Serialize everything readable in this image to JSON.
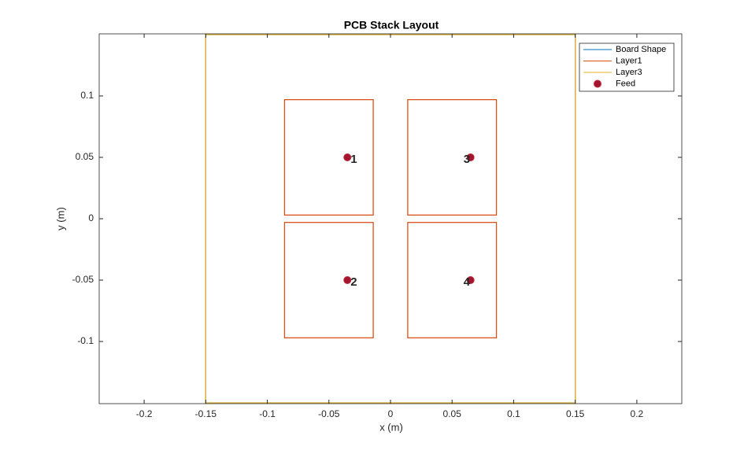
{
  "chart_data": {
    "type": "layout",
    "title": "PCB Stack Layout",
    "xlabel": "x (m)",
    "ylabel": "y (m)",
    "xlim": [
      -0.2365,
      0.2365
    ],
    "ylim": [
      -0.1506,
      0.1506
    ],
    "xticks": [
      -0.2,
      -0.15,
      -0.1,
      -0.05,
      0,
      0.05,
      0.1,
      0.15,
      0.2
    ],
    "yticks": [
      -0.1,
      -0.05,
      0,
      0.05,
      0.1
    ],
    "legend": "upper right",
    "series": [
      {
        "name": "Board Shape",
        "color": "#0072bd",
        "shapes": [
          {
            "x": [
              -0.15,
              0.15
            ],
            "y": [
              -0.15,
              0.15
            ]
          }
        ]
      },
      {
        "name": "Layer1",
        "color": "#d95319",
        "shapes": [
          {
            "x": [
              -0.086,
              -0.014
            ],
            "y": [
              0.003,
              0.097
            ]
          },
          {
            "x": [
              -0.086,
              -0.014
            ],
            "y": [
              -0.097,
              -0.003
            ]
          },
          {
            "x": [
              0.014,
              0.086
            ],
            "y": [
              0.003,
              0.097
            ]
          },
          {
            "x": [
              0.014,
              0.086
            ],
            "y": [
              -0.097,
              -0.003
            ]
          }
        ]
      },
      {
        "name": "Layer3",
        "color": "#edb120",
        "shapes": [
          {
            "x": [
              -0.15,
              0.15
            ],
            "y": [
              -0.15,
              0.15
            ]
          }
        ]
      },
      {
        "name": "Feed",
        "color": "#a2142f",
        "x": [
          -0.035,
          -0.035,
          0.065,
          0.065
        ],
        "y": [
          0.05,
          -0.05,
          0.05,
          -0.05
        ],
        "labels": [
          "1",
          "2",
          "3",
          "4"
        ]
      }
    ]
  }
}
